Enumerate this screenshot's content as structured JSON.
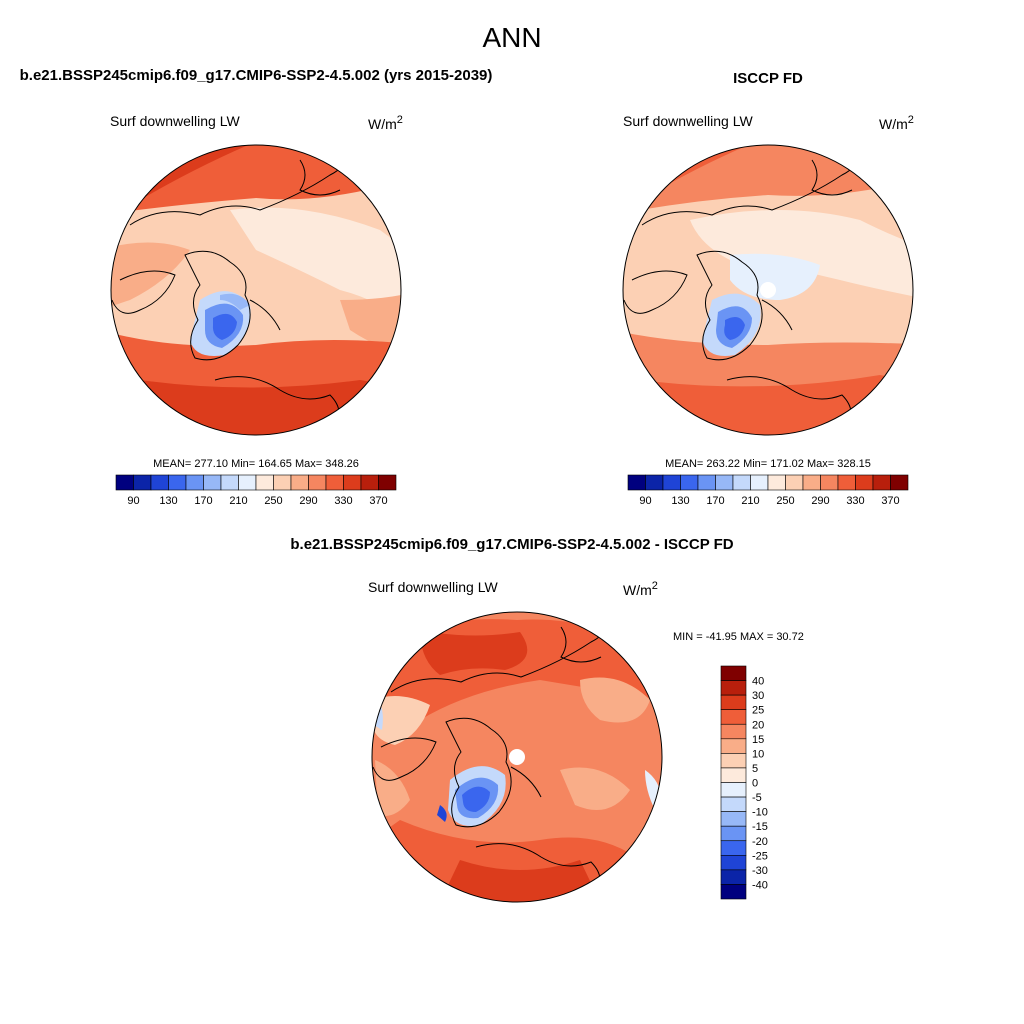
{
  "title": "ANN",
  "panels": {
    "left": {
      "title": "b.e21.BSSP245cmip6.f09_g17.CMIP6-SSP2-4.5.002 (yrs 2015-2039)",
      "variable": "Surf downwelling LW",
      "units_base": "W/m",
      "units_exp": "2",
      "stats": "MEAN= 277.10  Min= 164.65  Max= 348.26"
    },
    "right": {
      "title": "ISCCP FD",
      "variable": "Surf downwelling LW",
      "units_base": "W/m",
      "units_exp": "2",
      "stats": "MEAN= 263.22  Min= 171.02  Max= 328.15"
    },
    "diff": {
      "title": "b.e21.BSSP245cmip6.f09_g17.CMIP6-SSP2-4.5.002 - ISCCP FD",
      "variable": "Surf downwelling LW",
      "units_base": "W/m",
      "units_exp": "2",
      "stats": "MIN = -41.95 MAX =  30.72"
    }
  },
  "chart_data": [
    {
      "type": "heatmap",
      "projection": "polar stereographic (north pole)",
      "title": "b.e21.BSSP245cmip6.f09_g17.CMIP6-SSP2-4.5.002 (yrs 2015-2039)",
      "variable": "Surf downwelling LW",
      "units": "W/m^2",
      "mean": 277.1,
      "min": 164.65,
      "max": 348.26,
      "colorbar_levels": [
        90,
        110,
        130,
        150,
        170,
        190,
        210,
        230,
        250,
        270,
        290,
        310,
        330,
        350,
        370
      ],
      "colorbar_labels": [
        "90",
        "130",
        "170",
        "210",
        "250",
        "290",
        "330",
        "370"
      ],
      "colors": [
        "#00007f",
        "#0b24a8",
        "#1f44d6",
        "#3a66ee",
        "#6a94f4",
        "#97b8f7",
        "#c4d9fb",
        "#e6f0fd",
        "#fdeadc",
        "#fcd0b4",
        "#f9ad88",
        "#f58660",
        "#ef5e39",
        "#dc3c1c",
        "#b81f0c",
        "#7f0000"
      ]
    },
    {
      "type": "heatmap",
      "projection": "polar stereographic (north pole)",
      "title": "ISCCP FD",
      "variable": "Surf downwelling LW",
      "units": "W/m^2",
      "mean": 263.22,
      "min": 171.02,
      "max": 328.15,
      "colorbar_levels": [
        90,
        110,
        130,
        150,
        170,
        190,
        210,
        230,
        250,
        270,
        290,
        310,
        330,
        350,
        370
      ],
      "colorbar_labels": [
        "90",
        "130",
        "170",
        "210",
        "250",
        "290",
        "330",
        "370"
      ],
      "colors": [
        "#00007f",
        "#0b24a8",
        "#1f44d6",
        "#3a66ee",
        "#6a94f4",
        "#97b8f7",
        "#c4d9fb",
        "#e6f0fd",
        "#fdeadc",
        "#fcd0b4",
        "#f9ad88",
        "#f58660",
        "#ef5e39",
        "#dc3c1c",
        "#b81f0c",
        "#7f0000"
      ]
    },
    {
      "type": "heatmap",
      "projection": "polar stereographic (north pole)",
      "title": "b.e21.BSSP245cmip6.f09_g17.CMIP6-SSP2-4.5.002 - ISCCP FD",
      "variable": "Surf downwelling LW",
      "units": "W/m^2",
      "min": -41.95,
      "max": 30.72,
      "colorbar_levels": [
        40,
        30,
        25,
        20,
        15,
        10,
        5,
        0,
        -5,
        -10,
        -15,
        -20,
        -25,
        -30,
        -40
      ],
      "colorbar_labels": [
        "40",
        "30",
        "25",
        "20",
        "15",
        "10",
        "5",
        "0",
        "-5",
        "-10",
        "-15",
        "-20",
        "-25",
        "-30",
        "-40"
      ],
      "colors": [
        "#7f0000",
        "#b81f0c",
        "#dc3c1c",
        "#ef5e39",
        "#f58660",
        "#f9ad88",
        "#fcd0b4",
        "#fdeadc",
        "#e6f0fd",
        "#c4d9fb",
        "#97b8f7",
        "#6a94f4",
        "#3a66ee",
        "#1f44d6",
        "#0b24a8",
        "#00007f"
      ]
    }
  ]
}
